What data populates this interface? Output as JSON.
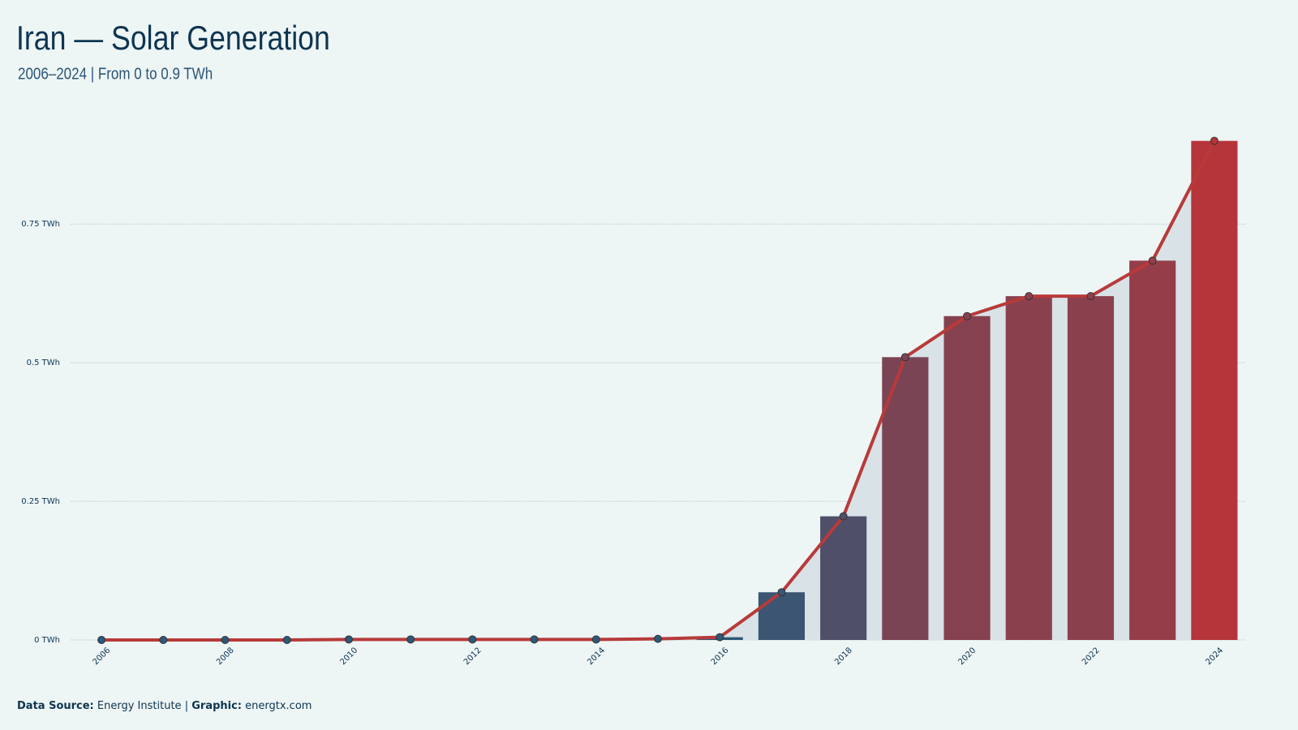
{
  "chart_data": {
    "type": "bar",
    "title": "Iran — Solar Generation",
    "subtitle": "2006–2024 | From 0 to 0.9 TWh",
    "categories": [
      "2006",
      null,
      "2008",
      null,
      "2010",
      null,
      "2012",
      null,
      "2014",
      null,
      "2016",
      null,
      "2018",
      null,
      "2020",
      null,
      "2022",
      null,
      "2024"
    ],
    "values": [
      0,
      0,
      0,
      0,
      0.001,
      0.001,
      0.001,
      0.001,
      0.001,
      0.002,
      0.005,
      0.086,
      0.223,
      0.51,
      0.584,
      0.62,
      0.62,
      0.684,
      0.9
    ],
    "ylim": [
      0,
      0.92
    ],
    "yticks": [
      {
        "value": 0,
        "label": "0 TWh"
      },
      {
        "value": 0.25,
        "label": "0.25 TWh"
      },
      {
        "value": 0.5,
        "label": "0.5 TWh"
      },
      {
        "value": 0.75,
        "label": "0.75 TWh"
      }
    ],
    "grid": true,
    "color_low": "#2e5878",
    "color_high": "#b5353a",
    "line_color": "#b83a3a",
    "area_color": "#d8e2e7",
    "footer": {
      "source_label": "Data Source:",
      "source": "Energy Institute",
      "separator": "|",
      "graphic_label": "Graphic:",
      "graphic": "energtx.com"
    }
  }
}
